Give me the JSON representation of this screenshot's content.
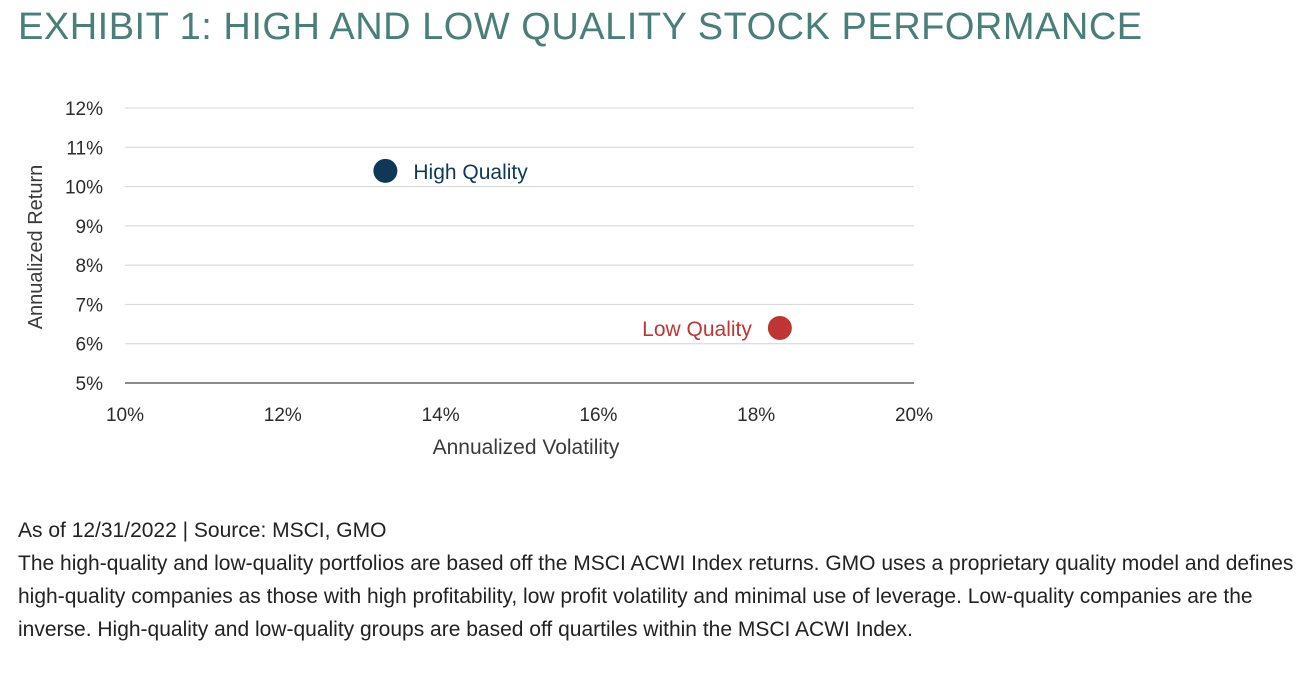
{
  "title": "EXHIBIT 1: HIGH AND LOW QUALITY STOCK PERFORMANCE",
  "chart_data": {
    "type": "scatter",
    "xlabel": "Annualized Volatility",
    "ylabel": "Annualized Return",
    "xlim": [
      10,
      20
    ],
    "ylim": [
      5,
      12
    ],
    "x_ticks": [
      10,
      12,
      14,
      16,
      18,
      20
    ],
    "y_ticks": [
      5,
      6,
      7,
      8,
      9,
      10,
      11,
      12
    ],
    "x_tick_labels": [
      "10%",
      "12%",
      "14%",
      "16%",
      "18%",
      "20%"
    ],
    "y_tick_labels": [
      "5%",
      "6%",
      "7%",
      "8%",
      "9%",
      "10%",
      "11%",
      "12%"
    ],
    "grid": "horizontal",
    "points": [
      {
        "label": "High Quality",
        "x": 13.3,
        "y": 10.4,
        "color": "#0f3857",
        "label_side": "right"
      },
      {
        "label": "Low Quality",
        "x": 18.3,
        "y": 6.4,
        "color": "#bf3533",
        "label_side": "left"
      }
    ]
  },
  "notes": {
    "source": "As of 12/31/2022 | Source: MSCI, GMO",
    "description": "The high-quality and low-quality portfolios are based off the MSCI ACWI Index returns. GMO uses a proprietary quality model and defines high-quality companies as those with high profitability, low profit volatility and minimal use of leverage. Low-quality companies are the inverse. High-quality and low-quality groups are based off quartiles within the MSCI ACWI Index."
  }
}
